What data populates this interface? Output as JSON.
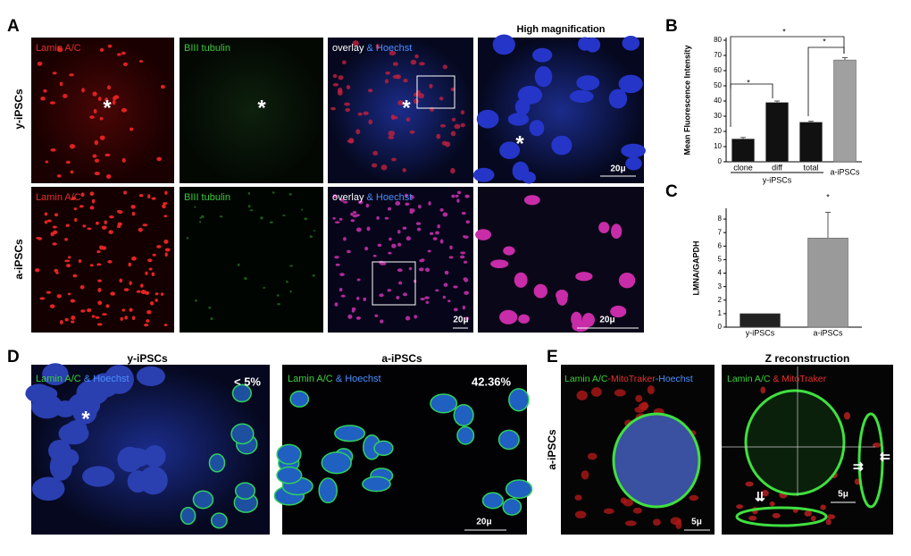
{
  "panels": {
    "A": {
      "letter": "A",
      "title": "High magnification",
      "rows": [
        "y-iPSCs",
        "a-iPSCs"
      ],
      "lamin": "Lamin A/C",
      "tubulin": "BIII tubulin",
      "overlay": "overlay",
      "hoechst": "& Hoechst",
      "asterisk": "*",
      "scale": "20μ"
    },
    "D": {
      "letter": "D",
      "titles": [
        "y-iPSCs",
        "a-iPSCs"
      ],
      "stain": "Lamin A/C",
      "hoechst": "& Hoechst",
      "percent": [
        "< 5%",
        "42.36%"
      ],
      "asterisk": "*",
      "scale": "20μ"
    },
    "E": {
      "letter": "E",
      "row": "a-iPSCs",
      "title": "Z reconstruction",
      "stain": "Lamin A/C",
      "mito_dash": "-MitoTraker",
      "hoechst_dash": "-Hoechst",
      "mito_and": "& MitoTraker",
      "scale": "5μ"
    }
  },
  "chart_data": [
    {
      "panel": "B",
      "type": "bar",
      "y_label": "Mean Fluorescence Intensity",
      "categories": [
        "clone",
        "diff",
        "total",
        "a-iPSCs"
      ],
      "group_label": "y-iPSCs",
      "values": [
        15,
        39,
        26,
        67
      ],
      "errors": [
        1,
        1,
        0.7,
        1.5
      ],
      "colors": [
        "#111111",
        "#111111",
        "#111111",
        "#a0a0a0"
      ],
      "ylim": [
        0,
        80
      ],
      "yticks": [
        0,
        10,
        20,
        30,
        40,
        50,
        60,
        70,
        80
      ],
      "significance": [
        "*",
        "*",
        "*"
      ]
    },
    {
      "panel": "C",
      "type": "bar",
      "y_label": "LMNA/GAPDH",
      "categories": [
        "y-iPSCs",
        "a-iPSCs"
      ],
      "values": [
        1,
        6.6
      ],
      "errors": [
        null,
        1.9
      ],
      "colors": [
        "#222222",
        "#9a9a9a"
      ],
      "ylim": [
        0,
        8.6
      ],
      "yticks": [
        0,
        1,
        2,
        3,
        4,
        5,
        6,
        7,
        8
      ],
      "significance": [
        "*"
      ]
    }
  ]
}
